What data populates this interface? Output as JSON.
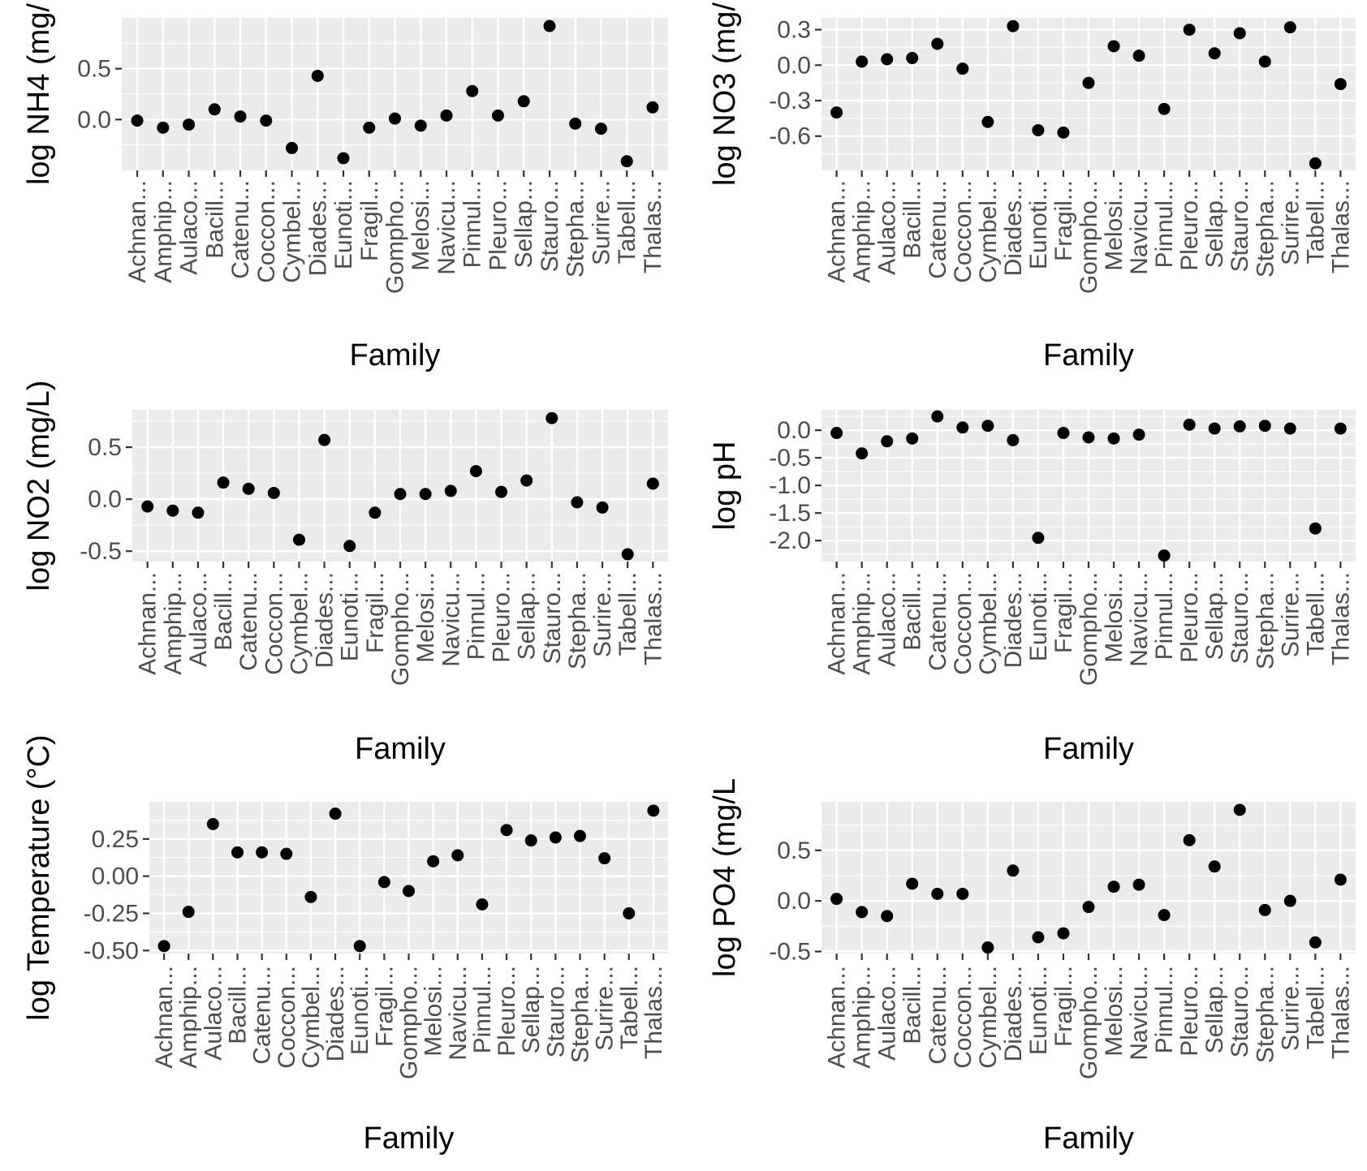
{
  "figure": {
    "type": "faceted scatter grid",
    "colors": {
      "panel": "#ebebeb",
      "grid": "#ffffff",
      "point": "#000000",
      "text": "#4d4d4d"
    }
  },
  "chart_data": [
    {
      "id": "nh4",
      "type": "scatter",
      "xlabel": "Family",
      "ylabel": "log NH4 (mg/",
      "categories": [
        "Achnan...",
        "Amphip...",
        "Aulaco...",
        "Bacill...",
        "Catenu...",
        "Coccon...",
        "Cymbel...",
        "Diades...",
        "Eunoti...",
        "Fragil...",
        "Gompho...",
        "Melosi...",
        "Navicu...",
        "Pinnul...",
        "Pleuro...",
        "Sellap...",
        "Stauro...",
        "Stepha...",
        "Surire...",
        "Tabell...",
        "Thalas..."
      ],
      "values": [
        -0.01,
        -0.08,
        -0.05,
        0.1,
        0.03,
        -0.01,
        -0.28,
        0.43,
        -0.38,
        -0.08,
        0.01,
        -0.06,
        0.04,
        0.28,
        0.04,
        0.18,
        0.92,
        -0.04,
        -0.09,
        -0.41,
        0.12
      ],
      "ylim": [
        -0.5,
        1.0
      ],
      "yticks": [
        0.0,
        0.5
      ],
      "ytick_labels": [
        "0.0",
        "0.5"
      ],
      "grid": true
    },
    {
      "id": "no3",
      "type": "scatter",
      "xlabel": "Family",
      "ylabel": "log NO3 (mg/",
      "categories": [
        "Achnan...",
        "Amphip...",
        "Aulaco...",
        "Bacill...",
        "Catenu...",
        "Coccon...",
        "Cymbel...",
        "Diades...",
        "Eunoti...",
        "Fragil...",
        "Gompho...",
        "Melosi...",
        "Navicu...",
        "Pinnul...",
        "Pleuro...",
        "Sellap...",
        "Stauro...",
        "Stepha...",
        "Surire...",
        "Tabell...",
        "Thalas..."
      ],
      "values": [
        -0.4,
        0.03,
        0.05,
        0.06,
        0.18,
        -0.03,
        -0.48,
        0.33,
        -0.55,
        -0.57,
        -0.15,
        0.16,
        0.08,
        -0.37,
        0.3,
        0.1,
        0.27,
        0.03,
        0.32,
        -0.83,
        -0.16
      ],
      "ylim": [
        -0.89,
        0.4
      ],
      "yticks": [
        -0.6,
        -0.3,
        0.0,
        0.3
      ],
      "ytick_labels": [
        "-0.6",
        "-0.3",
        "0.0",
        "0.3"
      ],
      "grid": true
    },
    {
      "id": "no2",
      "type": "scatter",
      "xlabel": "Family",
      "ylabel": "log NO2 (mg/L)",
      "categories": [
        "Achnan...",
        "Amphip...",
        "Aulaco...",
        "Bacill...",
        "Catenu...",
        "Coccon...",
        "Cymbel...",
        "Diades...",
        "Eunoti...",
        "Fragil...",
        "Gompho...",
        "Melosi...",
        "Navicu...",
        "Pinnul...",
        "Pleuro...",
        "Sellap...",
        "Stauro...",
        "Stepha...",
        "Surire...",
        "Tabell...",
        "Thalas..."
      ],
      "values": [
        -0.07,
        -0.11,
        -0.13,
        0.16,
        0.1,
        0.06,
        -0.39,
        0.57,
        -0.45,
        -0.13,
        0.05,
        0.05,
        0.08,
        0.27,
        0.07,
        0.18,
        0.78,
        -0.03,
        -0.08,
        -0.53,
        0.15
      ],
      "ylim": [
        -0.6,
        0.86
      ],
      "yticks": [
        -0.5,
        0.0,
        0.5
      ],
      "ytick_labels": [
        "-0.5",
        "0.0",
        "0.5"
      ],
      "grid": true
    },
    {
      "id": "ph",
      "type": "scatter",
      "xlabel": "Family",
      "ylabel": "log pH",
      "categories": [
        "Achnan...",
        "Amphip...",
        "Aulaco...",
        "Bacill...",
        "Catenu...",
        "Coccon...",
        "Cymbel...",
        "Diades...",
        "Eunoti...",
        "Fragil...",
        "Gompho...",
        "Melosi...",
        "Navicu...",
        "Pinnul...",
        "Pleuro...",
        "Sellap...",
        "Stauro...",
        "Stepha...",
        "Surire...",
        "Tabell...",
        "Thalas..."
      ],
      "values": [
        -0.05,
        -0.42,
        -0.2,
        -0.15,
        0.25,
        0.05,
        0.08,
        -0.18,
        -1.95,
        -0.05,
        -0.13,
        -0.15,
        -0.08,
        -2.27,
        0.1,
        0.03,
        0.07,
        0.08,
        0.03,
        -1.78,
        0.03
      ],
      "ylim": [
        -2.38,
        0.37
      ],
      "yticks": [
        -2.0,
        -1.5,
        -1.0,
        -0.5,
        0.0
      ],
      "ytick_labels": [
        "-2.0",
        "-1.5",
        "-1.0",
        "-0.5",
        "0.0"
      ],
      "grid": true
    },
    {
      "id": "temperature",
      "type": "scatter",
      "xlabel": "Family",
      "ylabel": "log Temperature (°C)",
      "categories": [
        "Achnan...",
        "Amphip...",
        "Aulaco...",
        "Bacill...",
        "Catenu...",
        "Coccon...",
        "Cymbel...",
        "Diades...",
        "Eunoti...",
        "Fragil...",
        "Gompho...",
        "Melosi...",
        "Navicu...",
        "Pinnul...",
        "Pleuro...",
        "Sellap...",
        "Stauro...",
        "Stepha...",
        "Surire...",
        "Tabell...",
        "Thalas..."
      ],
      "values": [
        -0.47,
        -0.24,
        0.35,
        0.16,
        0.16,
        0.15,
        -0.14,
        0.42,
        -0.47,
        -0.04,
        -0.1,
        0.1,
        0.14,
        -0.19,
        0.31,
        0.24,
        0.26,
        0.27,
        0.12,
        -0.25,
        0.44
      ],
      "ylim": [
        -0.52,
        0.5
      ],
      "yticks": [
        -0.5,
        -0.25,
        0.0,
        0.25
      ],
      "ytick_labels": [
        "-0.50",
        "-0.25",
        "0.00",
        "0.25"
      ],
      "grid": true
    },
    {
      "id": "po4",
      "type": "scatter",
      "xlabel": "Family",
      "ylabel": "log PO4 (mg/L",
      "categories": [
        "Achnan...",
        "Amphip...",
        "Aulaco...",
        "Bacill...",
        "Catenu...",
        "Coccon...",
        "Cymbel...",
        "Diades...",
        "Eunoti...",
        "Fragil...",
        "Gompho...",
        "Melosi...",
        "Navicu...",
        "Pinnul...",
        "Pleuro...",
        "Sellap...",
        "Stauro...",
        "Stepha...",
        "Surire...",
        "Tabell...",
        "Thalas..."
      ],
      "values": [
        0.02,
        -0.11,
        -0.15,
        0.17,
        0.07,
        0.07,
        -0.46,
        0.3,
        -0.36,
        -0.32,
        -0.06,
        0.14,
        0.16,
        -0.14,
        0.6,
        0.34,
        0.9,
        -0.09,
        0.0,
        -0.41,
        0.21
      ],
      "ylim": [
        -0.52,
        0.98
      ],
      "yticks": [
        -0.5,
        0.0,
        0.5
      ],
      "ytick_labels": [
        "-0.5",
        "0.0",
        "0.5"
      ],
      "grid": true
    }
  ]
}
